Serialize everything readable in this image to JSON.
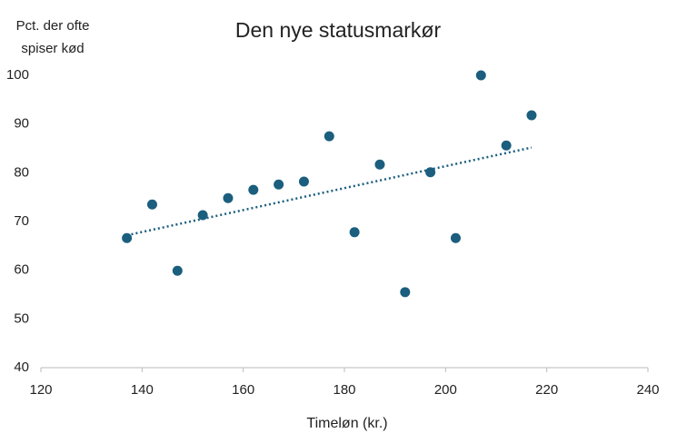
{
  "chart_data": {
    "type": "scatter",
    "title": "Den nye statusmarkør",
    "x_label": "Timeløn (kr.)",
    "y_label": [
      "Pct. der ofte",
      "spiser kød"
    ],
    "x": [
      137,
      142,
      147,
      152,
      157,
      162,
      167,
      172,
      177,
      182,
      187,
      192,
      197,
      202,
      207,
      212,
      217
    ],
    "values": [
      66.6,
      73.5,
      59.9,
      71.3,
      74.8,
      76.5,
      77.6,
      78.2,
      87.5,
      67.8,
      81.7,
      55.5,
      80.1,
      66.6,
      100,
      85.6,
      91.8
    ],
    "color": "#1b5e7e",
    "trendline": "linear",
    "xlim": [
      120,
      240
    ],
    "xticks": [
      120,
      140,
      160,
      180,
      200,
      220,
      240
    ],
    "ylim": [
      40,
      100
    ],
    "yticks": [
      40,
      50,
      60,
      70,
      80,
      90,
      100
    ],
    "grid": false
  }
}
